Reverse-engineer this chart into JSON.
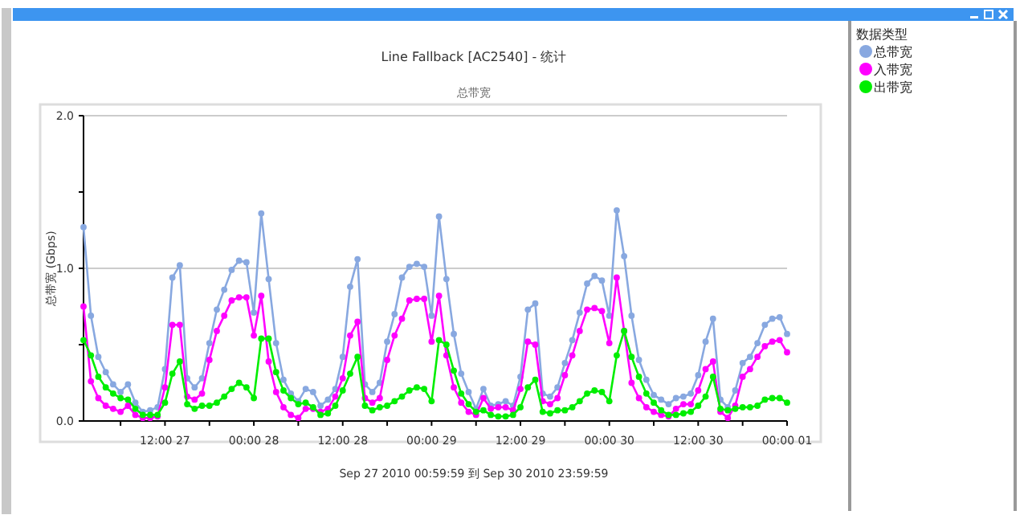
{
  "chart_data": {
    "type": "line",
    "title": "Line Fallback [AC2540] - 统计",
    "subtitle": "总带宽",
    "ylabel": "总带宽 (Gbps)",
    "legend_title": "数据类型",
    "annotations": [
      "Sep 27 2010  00:59:59  到  Sep 30 2010  23:59:59"
    ],
    "x": [
      "2010-09-27T01:00",
      "2010-09-27T02:00",
      "2010-09-27T03:00",
      "2010-09-27T04:00",
      "2010-09-27T05:00",
      "2010-09-27T06:00",
      "2010-09-27T07:00",
      "2010-09-27T08:00",
      "2010-09-27T09:00",
      "2010-09-27T10:00",
      "2010-09-27T11:00",
      "2010-09-27T12:00",
      "2010-09-27T13:00",
      "2010-09-27T14:00",
      "2010-09-27T15:00",
      "2010-09-27T16:00",
      "2010-09-27T17:00",
      "2010-09-27T18:00",
      "2010-09-27T19:00",
      "2010-09-27T20:00",
      "2010-09-27T21:00",
      "2010-09-27T22:00",
      "2010-09-27T23:00",
      "2010-09-28T00:00",
      "2010-09-28T01:00",
      "2010-09-28T02:00",
      "2010-09-28T03:00",
      "2010-09-28T04:00",
      "2010-09-28T05:00",
      "2010-09-28T06:00",
      "2010-09-28T07:00",
      "2010-09-28T08:00",
      "2010-09-28T09:00",
      "2010-09-28T10:00",
      "2010-09-28T11:00",
      "2010-09-28T12:00",
      "2010-09-28T13:00",
      "2010-09-28T14:00",
      "2010-09-28T15:00",
      "2010-09-28T16:00",
      "2010-09-28T17:00",
      "2010-09-28T18:00",
      "2010-09-28T19:00",
      "2010-09-28T20:00",
      "2010-09-28T21:00",
      "2010-09-28T22:00",
      "2010-09-28T23:00",
      "2010-09-29T00:00",
      "2010-09-29T01:00",
      "2010-09-29T02:00",
      "2010-09-29T03:00",
      "2010-09-29T04:00",
      "2010-09-29T05:00",
      "2010-09-29T06:00",
      "2010-09-29T07:00",
      "2010-09-29T08:00",
      "2010-09-29T09:00",
      "2010-09-29T10:00",
      "2010-09-29T11:00",
      "2010-09-29T12:00",
      "2010-09-29T13:00",
      "2010-09-29T14:00",
      "2010-09-29T15:00",
      "2010-09-29T16:00",
      "2010-09-29T17:00",
      "2010-09-29T18:00",
      "2010-09-29T19:00",
      "2010-09-29T20:00",
      "2010-09-29T21:00",
      "2010-09-29T22:00",
      "2010-09-29T23:00",
      "2010-09-30T00:00",
      "2010-09-30T01:00",
      "2010-09-30T02:00",
      "2010-09-30T03:00",
      "2010-09-30T04:00",
      "2010-09-30T05:00",
      "2010-09-30T06:00",
      "2010-09-30T07:00",
      "2010-09-30T08:00",
      "2010-09-30T09:00",
      "2010-09-30T10:00",
      "2010-09-30T11:00",
      "2010-09-30T12:00",
      "2010-09-30T13:00",
      "2010-09-30T14:00",
      "2010-09-30T15:00",
      "2010-09-30T16:00",
      "2010-09-30T17:00",
      "2010-09-30T18:00",
      "2010-09-30T19:00",
      "2010-09-30T20:00",
      "2010-09-30T21:00",
      "2010-09-30T22:00",
      "2010-09-30T23:00",
      "2010-10-01T00:00"
    ],
    "series": [
      {
        "name": "总带宽",
        "color": "#88a8e0",
        "values": [
          1.27,
          0.69,
          0.42,
          0.32,
          0.24,
          0.19,
          0.24,
          0.12,
          0.06,
          0.07,
          0.09,
          0.34,
          0.94,
          1.02,
          0.28,
          0.22,
          0.28,
          0.51,
          0.73,
          0.86,
          0.99,
          1.05,
          1.04,
          0.71,
          1.36,
          0.93,
          0.51,
          0.27,
          0.18,
          0.13,
          0.21,
          0.19,
          0.1,
          0.14,
          0.21,
          0.42,
          0.88,
          1.06,
          0.24,
          0.19,
          0.25,
          0.52,
          0.7,
          0.94,
          1.01,
          1.03,
          1.01,
          0.69,
          1.34,
          0.93,
          0.57,
          0.31,
          0.19,
          0.08,
          0.21,
          0.1,
          0.11,
          0.13,
          0.1,
          0.29,
          0.73,
          0.77,
          0.18,
          0.16,
          0.22,
          0.38,
          0.53,
          0.71,
          0.9,
          0.95,
          0.92,
          0.69,
          1.38,
          1.08,
          0.69,
          0.4,
          0.27,
          0.17,
          0.14,
          0.11,
          0.15,
          0.16,
          0.18,
          0.3,
          0.52,
          0.67,
          0.14,
          0.09,
          0.2,
          0.38,
          0.42,
          0.51,
          0.63,
          0.67,
          0.68,
          0.57
        ]
      },
      {
        "name": "入带宽",
        "color": "#ff00ff",
        "values": [
          0.75,
          0.26,
          0.15,
          0.1,
          0.08,
          0.06,
          0.1,
          0.04,
          0.02,
          0.02,
          0.03,
          0.22,
          0.63,
          0.63,
          0.16,
          0.14,
          0.18,
          0.4,
          0.59,
          0.69,
          0.79,
          0.81,
          0.81,
          0.56,
          0.82,
          0.39,
          0.19,
          0.09,
          0.04,
          0.02,
          0.08,
          0.08,
          0.06,
          0.08,
          0.16,
          0.28,
          0.56,
          0.65,
          0.15,
          0.12,
          0.15,
          0.4,
          0.56,
          0.67,
          0.79,
          0.8,
          0.8,
          0.52,
          0.82,
          0.43,
          0.22,
          0.12,
          0.06,
          0.04,
          0.15,
          0.08,
          0.09,
          0.09,
          0.07,
          0.21,
          0.52,
          0.5,
          0.13,
          0.11,
          0.15,
          0.3,
          0.43,
          0.59,
          0.73,
          0.74,
          0.72,
          0.51,
          0.94,
          0.59,
          0.25,
          0.15,
          0.09,
          0.06,
          0.04,
          0.03,
          0.08,
          0.11,
          0.11,
          0.2,
          0.34,
          0.39,
          0.06,
          0.02,
          0.1,
          0.29,
          0.34,
          0.42,
          0.49,
          0.52,
          0.53,
          0.45
        ]
      },
      {
        "name": "出带宽",
        "color": "#00ee00",
        "values": [
          0.53,
          0.43,
          0.29,
          0.22,
          0.18,
          0.15,
          0.14,
          0.08,
          0.04,
          0.04,
          0.04,
          0.12,
          0.31,
          0.39,
          0.11,
          0.08,
          0.1,
          0.1,
          0.12,
          0.16,
          0.21,
          0.25,
          0.22,
          0.15,
          0.54,
          0.54,
          0.32,
          0.2,
          0.15,
          0.11,
          0.12,
          0.09,
          0.04,
          0.05,
          0.1,
          0.2,
          0.31,
          0.42,
          0.1,
          0.07,
          0.09,
          0.1,
          0.13,
          0.16,
          0.2,
          0.22,
          0.21,
          0.13,
          0.53,
          0.5,
          0.33,
          0.18,
          0.11,
          0.06,
          0.07,
          0.04,
          0.03,
          0.03,
          0.04,
          0.09,
          0.22,
          0.27,
          0.06,
          0.05,
          0.07,
          0.07,
          0.09,
          0.13,
          0.18,
          0.2,
          0.19,
          0.13,
          0.43,
          0.59,
          0.42,
          0.29,
          0.18,
          0.12,
          0.07,
          0.04,
          0.04,
          0.05,
          0.06,
          0.1,
          0.16,
          0.29,
          0.08,
          0.07,
          0.08,
          0.09,
          0.09,
          0.1,
          0.14,
          0.15,
          0.15,
          0.12
        ]
      }
    ],
    "xlim": [
      "2010-09-27T01:00",
      "2010-10-01T00:00"
    ],
    "xticks": [
      {
        "value": "2010-09-27T06:00",
        "label": null
      },
      {
        "value": "2010-09-27T12:00",
        "label": "12:00 27"
      },
      {
        "value": "2010-09-27T18:00",
        "label": null
      },
      {
        "value": "2010-09-28T00:00",
        "label": "00:00 28"
      },
      {
        "value": "2010-09-28T06:00",
        "label": null
      },
      {
        "value": "2010-09-28T12:00",
        "label": "12:00 28"
      },
      {
        "value": "2010-09-28T18:00",
        "label": null
      },
      {
        "value": "2010-09-29T00:00",
        "label": "00:00 29"
      },
      {
        "value": "2010-09-29T06:00",
        "label": null
      },
      {
        "value": "2010-09-29T12:00",
        "label": "12:00 29"
      },
      {
        "value": "2010-09-29T18:00",
        "label": null
      },
      {
        "value": "2010-09-30T00:00",
        "label": "00:00 30"
      },
      {
        "value": "2010-09-30T06:00",
        "label": null
      },
      {
        "value": "2010-09-30T12:00",
        "label": "12:00 30"
      },
      {
        "value": "2010-09-30T18:00",
        "label": null
      },
      {
        "value": "2010-10-01T00:00",
        "label": "00:00 01"
      }
    ],
    "ylim": [
      0,
      2
    ],
    "yticks": [
      {
        "value": 0,
        "label": "0.0"
      },
      {
        "value": 0.5,
        "label": null
      },
      {
        "value": 1,
        "label": "1.0"
      },
      {
        "value": 1.5,
        "label": null
      },
      {
        "value": 2,
        "label": "2.0"
      }
    ],
    "grid": "y",
    "legend": "right",
    "marker": "circle",
    "line_style": "solid"
  }
}
